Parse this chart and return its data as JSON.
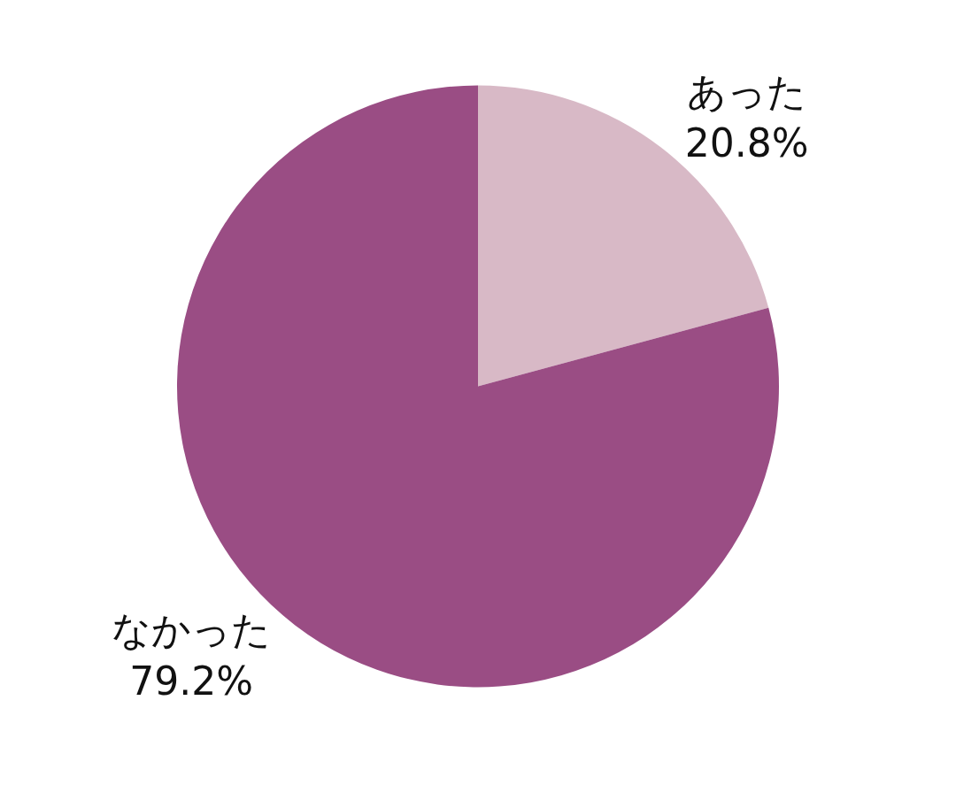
{
  "chart_data": {
    "type": "pie",
    "categories": [
      "あった",
      "なかった"
    ],
    "values": [
      20.8,
      79.2
    ],
    "colors": [
      "#d8b9c6",
      "#9a4d84"
    ],
    "value_labels": [
      "20.8%",
      "79.2%"
    ],
    "legend": false
  }
}
